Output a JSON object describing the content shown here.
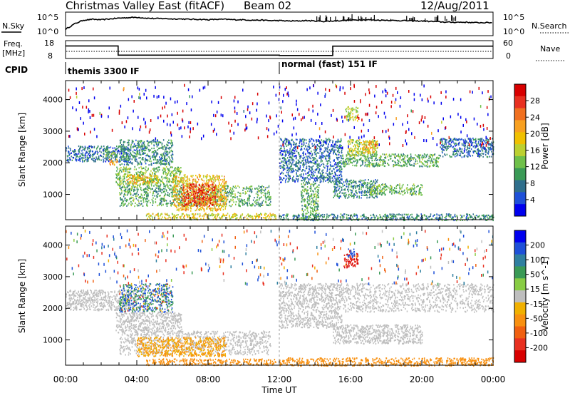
{
  "header": {
    "title": "Christmas Valley East (fitACF)",
    "beam": "Beam 02",
    "date": "12/Aug/2011"
  },
  "left_labels": {
    "nsky": "N.Sky",
    "nsky_ticks": [
      "10^5",
      "10^0"
    ],
    "freq": "Freq.",
    "freq_unit": "[MHz]",
    "freq_ticks": [
      "18",
      "8"
    ],
    "cpid": "CPID"
  },
  "right_labels": {
    "nsearch_ticks": [
      "10^5",
      "10^0"
    ],
    "nsearch": "N.Search",
    "nave_ticks": [
      "60",
      "0"
    ],
    "nave": "Nave"
  },
  "cpid_segments": [
    {
      "label": "themis 3300 IF",
      "start_hour": 0
    },
    {
      "label": "normal (fast) 151 IF",
      "start_hour": 12
    }
  ],
  "chart_data": [
    {
      "type": "line",
      "title": "N.Sky / N.Search",
      "xlim": [
        0,
        24
      ],
      "ylim_log10": [
        0,
        5
      ],
      "series": [
        {
          "name": "N.Sky",
          "x": [
            0,
            0.5,
            1,
            1.5,
            2,
            2.5,
            3,
            3.5,
            4,
            4.5,
            5,
            5.5,
            6,
            6.5,
            7,
            7.5,
            8,
            8.5,
            9,
            9.5,
            10,
            10.5,
            11,
            11.5,
            12,
            12.5,
            13,
            13.5,
            14,
            14.5,
            15,
            15.5,
            16,
            16.5,
            17,
            17.5,
            18,
            18.5,
            19,
            19.5,
            20,
            20.5,
            21,
            21.5,
            22,
            22.5,
            23,
            23.5,
            24
          ],
          "y_log10": [
            1.2,
            2.5,
            3.4,
            3.6,
            3.5,
            3.7,
            3.9,
            4.0,
            4.1,
            3.9,
            3.8,
            3.8,
            3.7,
            3.7,
            3.6,
            3.6,
            3.5,
            3.6,
            3.6,
            3.5,
            3.5,
            3.4,
            3.4,
            3.3,
            3.3,
            3.2,
            3.2,
            3.3,
            3.2,
            3.1,
            3.2,
            3.3,
            3.4,
            3.5,
            3.5,
            3.4,
            3.4,
            3.3,
            3.3,
            3.2,
            3.2,
            3.1,
            3.0,
            2.9,
            2.9,
            2.9,
            2.8,
            2.8,
            2.8
          ]
        }
      ]
    },
    {
      "type": "line",
      "title": "Freq. / Nave",
      "xlim": [
        0,
        24
      ],
      "ylim": [
        8,
        18
      ],
      "series": [
        {
          "name": "Freq.",
          "steps": [
            {
              "start": 0,
              "end": 2.95,
              "value": 15.2
            },
            {
              "start": 2.95,
              "end": 12.0,
              "value": 9.6
            },
            {
              "start": 12.0,
              "end": 15.0,
              "value": 9.4
            },
            {
              "start": 15.0,
              "end": 24,
              "value": 15.1
            }
          ]
        }
      ]
    },
    {
      "type": "heatmap",
      "title": "Power",
      "xlabel": "",
      "ylabel": "Slant Range [km]",
      "xlim": [
        0,
        24
      ],
      "ylim": [
        200,
        4600
      ],
      "yticks": [
        1000,
        2000,
        3000,
        4000
      ],
      "colorbar_label": "Power [dB]",
      "colorbar_ticks": [
        4,
        8,
        12,
        16,
        20,
        24,
        28
      ],
      "colorbar_colors": [
        "#0000ee",
        "#1e50d8",
        "#2f6f8c",
        "#3a9a56",
        "#6fc04a",
        "#bcd030",
        "#f0c000",
        "#f8a020",
        "#f07020",
        "#e83020",
        "#d80000"
      ],
      "regions": [
        {
          "t0": 0.0,
          "t1": 3.6,
          "r0": 2050,
          "r1": 2550,
          "level": 8
        },
        {
          "t0": 2.4,
          "t1": 2.9,
          "r0": 1950,
          "r1": 2150,
          "level": 22
        },
        {
          "t0": 2.2,
          "t1": 2.8,
          "r0": 2200,
          "r1": 2450,
          "level": 14
        },
        {
          "t0": 3.0,
          "t1": 6.0,
          "r0": 1950,
          "r1": 2750,
          "level": 10
        },
        {
          "t0": 2.8,
          "t1": 6.5,
          "r0": 1300,
          "r1": 1900,
          "level": 14
        },
        {
          "t0": 3.4,
          "t1": 5.2,
          "r0": 1350,
          "r1": 1650,
          "level": 20
        },
        {
          "t0": 3.0,
          "t1": 11.5,
          "r0": 650,
          "r1": 1300,
          "level": 12
        },
        {
          "t0": 6.0,
          "t1": 9.0,
          "r0": 500,
          "r1": 1650,
          "level": 20
        },
        {
          "t0": 6.5,
          "t1": 8.4,
          "r0": 650,
          "r1": 1350,
          "level": 27
        },
        {
          "t0": 4.5,
          "t1": 11.8,
          "r0": 220,
          "r1": 420,
          "level": 18
        },
        {
          "t0": 12.0,
          "t1": 15.5,
          "r0": 1400,
          "r1": 2800,
          "level": 8
        },
        {
          "t0": 13.2,
          "t1": 14.2,
          "r0": 200,
          "r1": 1400,
          "level": 12
        },
        {
          "t0": 15.0,
          "t1": 17.5,
          "r0": 900,
          "r1": 1500,
          "level": 10
        },
        {
          "t0": 17.0,
          "t1": 20.0,
          "r0": 1000,
          "r1": 1350,
          "level": 13
        },
        {
          "t0": 15.5,
          "t1": 21.0,
          "r0": 1900,
          "r1": 2300,
          "level": 12
        },
        {
          "t0": 15.8,
          "t1": 17.5,
          "r0": 2250,
          "r1": 2750,
          "level": 16
        },
        {
          "t0": 16.6,
          "t1": 17.4,
          "r0": 2300,
          "r1": 2700,
          "level": 20
        },
        {
          "t0": 21.0,
          "t1": 24.0,
          "r0": 2200,
          "r1": 2800,
          "level": 8
        },
        {
          "t0": 15.7,
          "t1": 16.4,
          "r0": 3350,
          "r1": 3800,
          "level": 16
        },
        {
          "t0": 12.0,
          "t1": 24.0,
          "r0": 200,
          "r1": 400,
          "level": 10
        },
        {
          "t0": 12.0,
          "t1": 24.0,
          "r0": 2500,
          "r1": 4500,
          "level": 6,
          "sparse": true
        },
        {
          "t0": 0.0,
          "t1": 12.0,
          "r0": 2800,
          "r1": 4500,
          "level": 6,
          "sparse": true
        }
      ]
    },
    {
      "type": "heatmap",
      "title": "Velocity",
      "xlabel": "Time UT",
      "ylabel": "Slant Range [km]",
      "xlim": [
        0,
        24
      ],
      "ylim": [
        200,
        4600
      ],
      "yticks": [
        1000,
        2000,
        3000,
        4000
      ],
      "xticks": [
        "00:00",
        "04:00",
        "08:00",
        "12:00",
        "16:00",
        "20:00",
        "00:00"
      ],
      "colorbar_label": "Velocity [m s^-1]",
      "colorbar_ticks": [
        200,
        100,
        50,
        15,
        -15,
        -50,
        -100,
        -200
      ],
      "colorbar_colors": [
        "#0000ee",
        "#1e50d8",
        "#2f7fa0",
        "#3a9a56",
        "#88cc44",
        "#bebebe",
        "#f0b000",
        "#f89010",
        "#f06010",
        "#e83020",
        "#d80000"
      ],
      "regions": [
        {
          "t0": 0.0,
          "t1": 4.0,
          "r0": 1950,
          "r1": 2600,
          "level": 0
        },
        {
          "t0": 3.0,
          "t1": 6.0,
          "r0": 1900,
          "r1": 2800,
          "level": 30,
          "mix": true
        },
        {
          "t0": 2.8,
          "t1": 6.5,
          "r0": 1250,
          "r1": 1900,
          "level": 0
        },
        {
          "t0": 3.0,
          "t1": 11.5,
          "r0": 550,
          "r1": 1300,
          "level": 0
        },
        {
          "t0": 4.0,
          "t1": 9.0,
          "r0": 500,
          "r1": 1100,
          "level": -30
        },
        {
          "t0": 4.5,
          "t1": 11.8,
          "r0": 220,
          "r1": 420,
          "level": -40
        },
        {
          "t0": 12.0,
          "t1": 15.5,
          "r0": 1400,
          "r1": 2800,
          "level": 0
        },
        {
          "t0": 15.0,
          "t1": 20.0,
          "r0": 900,
          "r1": 1500,
          "level": 0
        },
        {
          "t0": 15.5,
          "t1": 24.0,
          "r0": 1900,
          "r1": 2800,
          "level": 0
        },
        {
          "t0": 15.6,
          "t1": 16.4,
          "r0": 3300,
          "r1": 3750,
          "level": -200
        },
        {
          "t0": 15.8,
          "t1": 16.2,
          "r0": 3600,
          "r1": 3900,
          "level": 180
        },
        {
          "t0": 12.0,
          "t1": 24.0,
          "r0": 200,
          "r1": 450,
          "level": -40
        },
        {
          "t0": 12.0,
          "t1": 24.0,
          "r0": 2800,
          "r1": 4500,
          "level": 0,
          "sparse": true
        },
        {
          "t0": 0.0,
          "t1": 12.0,
          "r0": 2800,
          "r1": 4500,
          "level": 0,
          "sparse": true
        }
      ]
    }
  ]
}
